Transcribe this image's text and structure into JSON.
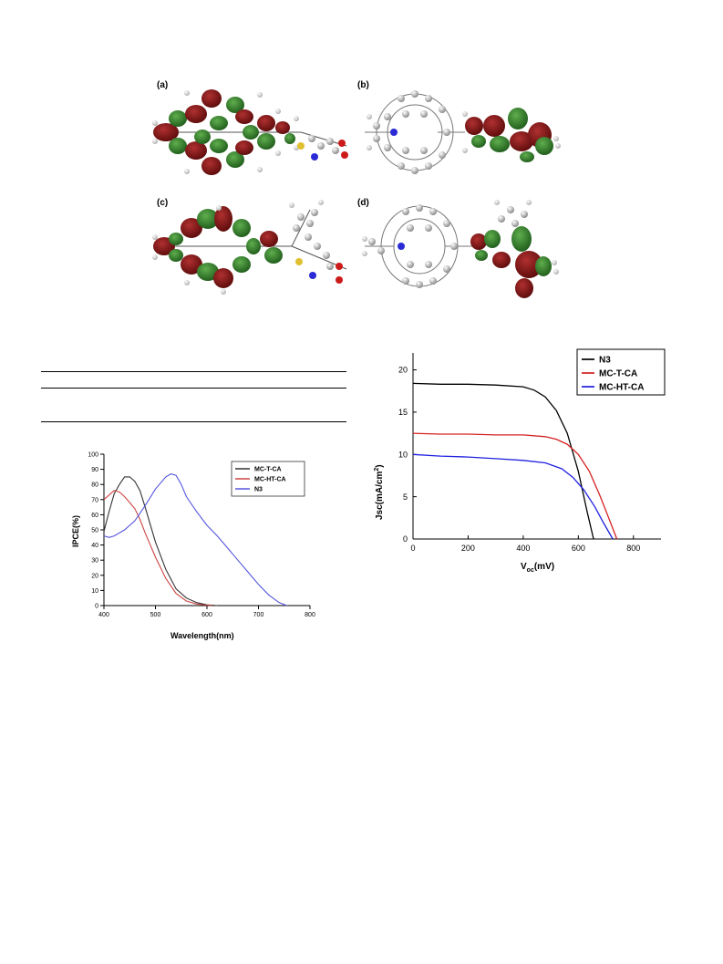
{
  "figure_top": {
    "panels": [
      {
        "label": "(a)"
      },
      {
        "label": "(b)"
      },
      {
        "label": "(c)"
      },
      {
        "label": "(d)"
      }
    ],
    "colors": {
      "lobe_red": "#7a1414",
      "lobe_green": "#2f7a2a",
      "atom_gray": "#b8b8b8",
      "atom_white": "#f2f2f2",
      "nitrogen": "#2a2ad6",
      "sulfur": "#e0c030",
      "oxygen": "#cc1a1a"
    }
  },
  "table_stub": {
    "rules": 3
  },
  "chart_data": [
    {
      "type": "line",
      "id": "jv-curve",
      "title": "",
      "xlabel_main": "V",
      "xlabel_sub": "oc",
      "xlabel_unit": "(mV)",
      "ylabel_main": "Jsc(mA/cm",
      "ylabel_sup": "2",
      "ylabel_end": ")",
      "xlim": [
        0,
        900
      ],
      "ylim": [
        0,
        22
      ],
      "xticks": [
        0,
        200,
        400,
        600,
        800
      ],
      "yticks": [
        0,
        5,
        10,
        15,
        20
      ],
      "legend_position": "top-right",
      "grid": false,
      "series": [
        {
          "name": "N3",
          "color": "#000000",
          "x": [
            0,
            100,
            200,
            300,
            400,
            440,
            480,
            520,
            560,
            600,
            630,
            655
          ],
          "y": [
            18.4,
            18.3,
            18.3,
            18.2,
            18.0,
            17.6,
            16.8,
            15.2,
            12.5,
            8.0,
            3.5,
            0
          ]
        },
        {
          "name": "MC-T-CA",
          "color": "#d42020",
          "x": [
            0,
            100,
            200,
            300,
            400,
            480,
            520,
            560,
            600,
            640,
            680,
            710,
            740
          ],
          "y": [
            12.5,
            12.4,
            12.4,
            12.3,
            12.3,
            12.1,
            11.8,
            11.2,
            10.0,
            8.0,
            5.0,
            2.5,
            0
          ]
        },
        {
          "name": "MC-HT-CA",
          "color": "#2020e0",
          "x": [
            0,
            100,
            200,
            300,
            400,
            480,
            540,
            580,
            620,
            660,
            690,
            725
          ],
          "y": [
            10.0,
            9.8,
            9.7,
            9.5,
            9.3,
            9.0,
            8.3,
            7.3,
            5.8,
            3.8,
            2.0,
            0
          ]
        }
      ]
    },
    {
      "type": "line",
      "id": "ipce-curve",
      "title": "",
      "xlabel": "Wavelength(nm)",
      "ylabel": "IPCE(%)",
      "xlim": [
        400,
        800
      ],
      "ylim": [
        0,
        100
      ],
      "xticks": [
        400,
        500,
        600,
        700,
        800
      ],
      "yticks": [
        0,
        10,
        20,
        30,
        40,
        50,
        60,
        70,
        80,
        90,
        100
      ],
      "legend_position": "top-right",
      "grid": false,
      "series": [
        {
          "name": "MC-T-CA",
          "color": "#333333",
          "x": [
            400,
            410,
            420,
            430,
            440,
            450,
            460,
            470,
            480,
            500,
            520,
            540,
            560,
            580,
            600,
            620
          ],
          "y": [
            49,
            62,
            74,
            80,
            85,
            85,
            82,
            76,
            65,
            42,
            24,
            11,
            5,
            2,
            0.5,
            0
          ]
        },
        {
          "name": "MC-HT-CA",
          "color": "#cc4444",
          "x": [
            400,
            410,
            420,
            430,
            440,
            450,
            460,
            470,
            480,
            500,
            520,
            540,
            560,
            580,
            600,
            610
          ],
          "y": [
            70,
            73,
            76,
            75,
            72,
            68,
            64,
            57,
            48,
            32,
            18,
            8,
            3,
            1,
            0.3,
            0
          ]
        },
        {
          "name": "N3",
          "color": "#5555dd",
          "x": [
            400,
            410,
            420,
            440,
            460,
            480,
            500,
            520,
            530,
            540,
            550,
            560,
            580,
            600,
            620,
            640,
            660,
            680,
            700,
            720,
            740,
            755
          ],
          "y": [
            46,
            45,
            46,
            50,
            56,
            66,
            77,
            85,
            87,
            86,
            80,
            72,
            62,
            53,
            46,
            38,
            30,
            22,
            14,
            7,
            2,
            0
          ]
        }
      ]
    }
  ]
}
